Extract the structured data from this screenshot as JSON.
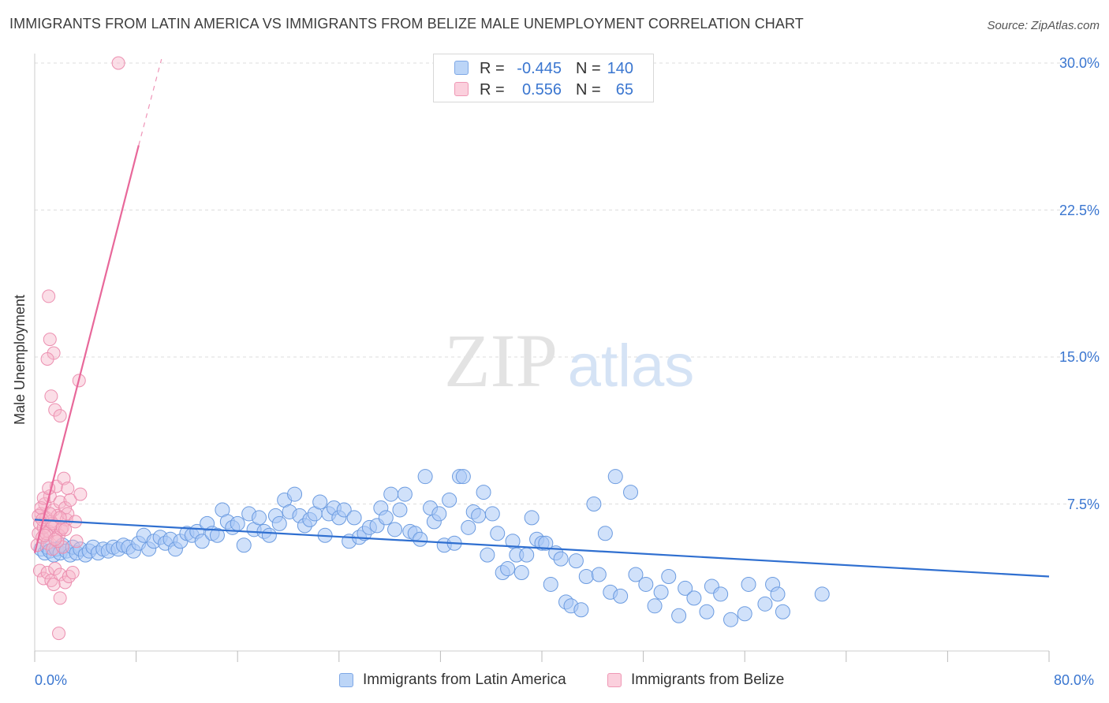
{
  "header": {
    "title": "IMMIGRANTS FROM LATIN AMERICA VS IMMIGRANTS FROM BELIZE MALE UNEMPLOYMENT CORRELATION CHART",
    "source": "Source: ZipAtlas.com"
  },
  "legend_top": {
    "rows": [
      {
        "r_label": "R =",
        "r_value": "-0.445",
        "n_label": "N =",
        "n_value": "140"
      },
      {
        "r_label": "R =",
        "r_value": "0.556",
        "n_label": "N =",
        "n_value": "65"
      }
    ]
  },
  "bottom_legend": {
    "items": [
      {
        "label": "Immigrants from Latin America"
      },
      {
        "label": "Immigrants from Belize"
      }
    ]
  },
  "watermark": {
    "part1": "ZIP",
    "part2": "atlas"
  },
  "colors": {
    "blue": "#3a76d0",
    "blue_fill": "#a9c8f5",
    "blue_line": "#2f6fd0",
    "pink_fill": "#f7b6c9",
    "pink_line": "#e8689a",
    "grid": "#dddddd"
  },
  "chart_data": {
    "type": "scatter",
    "title": "IMMIGRANTS FROM LATIN AMERICA VS IMMIGRANTS FROM BELIZE MALE UNEMPLOYMENT CORRELATION CHART",
    "xlabel": "",
    "ylabel": "Male Unemployment",
    "xlim": [
      0,
      80
    ],
    "ylim": [
      0,
      30
    ],
    "x_tick_labels": [
      "0.0%",
      "80.0%"
    ],
    "y_ticks": [
      7.5,
      15.0,
      22.5,
      30.0
    ],
    "y_tick_labels": [
      "7.5%",
      "15.0%",
      "22.5%",
      "30.0%"
    ],
    "grid": true,
    "legend_position": "top-center",
    "series": [
      {
        "name": "Immigrants from Latin America",
        "color": "#a9c8f5",
        "trend": {
          "x": [
            0,
            80
          ],
          "y": [
            6.7,
            3.8
          ]
        },
        "points": [
          [
            0.5,
            5.2
          ],
          [
            0.8,
            5.0
          ],
          [
            1.0,
            5.3
          ],
          [
            1.2,
            5.1
          ],
          [
            1.5,
            4.9
          ],
          [
            1.7,
            5.2
          ],
          [
            2.0,
            5.0
          ],
          [
            2.2,
            5.4
          ],
          [
            2.5,
            5.1
          ],
          [
            2.8,
            4.9
          ],
          [
            3.0,
            5.3
          ],
          [
            3.3,
            5.0
          ],
          [
            3.6,
            5.2
          ],
          [
            4.0,
            4.9
          ],
          [
            4.3,
            5.1
          ],
          [
            4.6,
            5.3
          ],
          [
            5.0,
            5.0
          ],
          [
            5.4,
            5.2
          ],
          [
            5.8,
            5.1
          ],
          [
            6.2,
            5.3
          ],
          [
            6.6,
            5.2
          ],
          [
            7.0,
            5.4
          ],
          [
            7.4,
            5.3
          ],
          [
            7.8,
            5.1
          ],
          [
            8.2,
            5.5
          ],
          [
            8.6,
            5.9
          ],
          [
            9.0,
            5.2
          ],
          [
            9.4,
            5.6
          ],
          [
            9.9,
            5.8
          ],
          [
            10.3,
            5.5
          ],
          [
            10.7,
            5.7
          ],
          [
            11.1,
            5.2
          ],
          [
            11.5,
            5.6
          ],
          [
            12.0,
            6.0
          ],
          [
            12.4,
            5.9
          ],
          [
            12.8,
            6.1
          ],
          [
            13.2,
            5.6
          ],
          [
            13.6,
            6.5
          ],
          [
            14.0,
            6.0
          ],
          [
            14.4,
            5.9
          ],
          [
            14.8,
            7.2
          ],
          [
            15.2,
            6.6
          ],
          [
            15.6,
            6.3
          ],
          [
            16.0,
            6.5
          ],
          [
            16.5,
            5.4
          ],
          [
            16.9,
            7.0
          ],
          [
            17.3,
            6.2
          ],
          [
            17.7,
            6.8
          ],
          [
            18.1,
            6.1
          ],
          [
            18.5,
            5.9
          ],
          [
            19.0,
            6.9
          ],
          [
            19.3,
            6.5
          ],
          [
            19.7,
            7.7
          ],
          [
            20.1,
            7.1
          ],
          [
            20.5,
            8.0
          ],
          [
            20.9,
            6.9
          ],
          [
            21.3,
            6.4
          ],
          [
            21.7,
            6.7
          ],
          [
            22.1,
            7.0
          ],
          [
            22.5,
            7.6
          ],
          [
            22.9,
            5.9
          ],
          [
            23.2,
            7.0
          ],
          [
            23.6,
            7.3
          ],
          [
            24.0,
            6.8
          ],
          [
            24.4,
            7.2
          ],
          [
            24.8,
            5.6
          ],
          [
            25.2,
            6.8
          ],
          [
            25.6,
            5.8
          ],
          [
            26.0,
            6.0
          ],
          [
            26.4,
            6.3
          ],
          [
            27.0,
            6.4
          ],
          [
            27.3,
            7.3
          ],
          [
            27.7,
            6.8
          ],
          [
            28.1,
            8.0
          ],
          [
            28.4,
            6.2
          ],
          [
            28.8,
            7.2
          ],
          [
            29.2,
            8.0
          ],
          [
            29.6,
            6.1
          ],
          [
            30.0,
            6.0
          ],
          [
            30.4,
            5.7
          ],
          [
            30.8,
            8.9
          ],
          [
            31.2,
            7.3
          ],
          [
            31.5,
            6.6
          ],
          [
            31.9,
            7.0
          ],
          [
            32.3,
            5.4
          ],
          [
            32.7,
            7.7
          ],
          [
            33.1,
            5.5
          ],
          [
            33.5,
            8.9
          ],
          [
            33.8,
            8.9
          ],
          [
            34.2,
            6.3
          ],
          [
            34.6,
            7.1
          ],
          [
            35.0,
            6.9
          ],
          [
            35.4,
            8.1
          ],
          [
            35.7,
            4.9
          ],
          [
            36.1,
            7.0
          ],
          [
            36.5,
            6.0
          ],
          [
            36.9,
            4.0
          ],
          [
            37.3,
            4.2
          ],
          [
            37.7,
            5.6
          ],
          [
            38.0,
            4.9
          ],
          [
            38.4,
            4.0
          ],
          [
            38.8,
            4.9
          ],
          [
            39.2,
            6.8
          ],
          [
            39.6,
            5.7
          ],
          [
            40.0,
            5.5
          ],
          [
            40.3,
            5.5
          ],
          [
            40.7,
            3.4
          ],
          [
            41.1,
            5.0
          ],
          [
            41.5,
            4.7
          ],
          [
            41.9,
            2.5
          ],
          [
            42.3,
            2.3
          ],
          [
            42.7,
            4.6
          ],
          [
            43.1,
            2.1
          ],
          [
            43.5,
            3.8
          ],
          [
            44.1,
            7.5
          ],
          [
            44.5,
            3.9
          ],
          [
            45.0,
            6.0
          ],
          [
            45.4,
            3.0
          ],
          [
            45.8,
            8.9
          ],
          [
            46.2,
            2.8
          ],
          [
            47.0,
            8.1
          ],
          [
            47.4,
            3.9
          ],
          [
            48.2,
            3.4
          ],
          [
            48.9,
            2.3
          ],
          [
            49.4,
            3.0
          ],
          [
            50.0,
            3.8
          ],
          [
            50.8,
            1.8
          ],
          [
            51.3,
            3.2
          ],
          [
            52.0,
            2.7
          ],
          [
            53.0,
            2.0
          ],
          [
            53.4,
            3.3
          ],
          [
            54.1,
            2.9
          ],
          [
            54.9,
            1.6
          ],
          [
            56.0,
            1.9
          ],
          [
            56.3,
            3.4
          ],
          [
            57.6,
            2.4
          ],
          [
            58.2,
            3.4
          ],
          [
            58.6,
            2.9
          ],
          [
            59.0,
            2.0
          ],
          [
            62.1,
            2.9
          ]
        ]
      },
      {
        "name": "Immigrants from Belize",
        "color": "#f7b6c9",
        "trend": {
          "x": [
            0,
            8.2
          ],
          "y": [
            5.0,
            25.8
          ]
        },
        "trend_dashed": {
          "x": [
            8.2,
            10.0
          ],
          "y": [
            25.8,
            30.2
          ]
        },
        "points": [
          [
            0.2,
            5.4
          ],
          [
            0.3,
            6.0
          ],
          [
            0.4,
            6.5
          ],
          [
            0.5,
            7.0
          ],
          [
            0.6,
            5.8
          ],
          [
            0.7,
            6.3
          ],
          [
            0.8,
            7.5
          ],
          [
            0.9,
            6.8
          ],
          [
            1.0,
            5.5
          ],
          [
            1.1,
            6.1
          ],
          [
            1.2,
            7.9
          ],
          [
            1.3,
            6.6
          ],
          [
            1.4,
            5.2
          ],
          [
            1.5,
            7.2
          ],
          [
            1.6,
            6.4
          ],
          [
            1.7,
            8.4
          ],
          [
            1.8,
            6.9
          ],
          [
            1.9,
            5.9
          ],
          [
            2.0,
            7.6
          ],
          [
            2.1,
            6.2
          ],
          [
            2.2,
            5.3
          ],
          [
            2.3,
            8.8
          ],
          [
            2.4,
            7.3
          ],
          [
            2.5,
            6.7
          ],
          [
            2.6,
            8.3
          ],
          [
            0.4,
            4.1
          ],
          [
            0.7,
            3.7
          ],
          [
            1.0,
            4.0
          ],
          [
            1.3,
            3.6
          ],
          [
            1.6,
            4.2
          ],
          [
            2.0,
            3.9
          ],
          [
            2.4,
            3.5
          ],
          [
            2.7,
            3.8
          ],
          [
            3.0,
            4.0
          ],
          [
            3.3,
            5.6
          ],
          [
            1.2,
            15.9
          ],
          [
            1.5,
            15.2
          ],
          [
            1.0,
            14.9
          ],
          [
            1.3,
            13.0
          ],
          [
            1.6,
            12.3
          ],
          [
            2.0,
            12.0
          ],
          [
            3.5,
            13.8
          ],
          [
            1.1,
            18.1
          ],
          [
            0.3,
            6.9
          ],
          [
            0.5,
            7.3
          ],
          [
            0.9,
            6.0
          ],
          [
            1.4,
            6.5
          ],
          [
            1.8,
            5.6
          ],
          [
            2.2,
            6.3
          ],
          [
            2.6,
            7.0
          ],
          [
            0.6,
            6.7
          ],
          [
            0.8,
            5.9
          ],
          [
            1.2,
            7.0
          ],
          [
            1.6,
            5.7
          ],
          [
            2.0,
            6.8
          ],
          [
            2.4,
            6.2
          ],
          [
            2.8,
            7.7
          ],
          [
            3.2,
            6.6
          ],
          [
            3.6,
            8.0
          ],
          [
            1.5,
            3.4
          ],
          [
            2.0,
            2.7
          ],
          [
            1.9,
            0.9
          ],
          [
            0.7,
            7.8
          ],
          [
            1.1,
            8.3
          ],
          [
            6.6,
            30.0
          ]
        ]
      }
    ]
  }
}
